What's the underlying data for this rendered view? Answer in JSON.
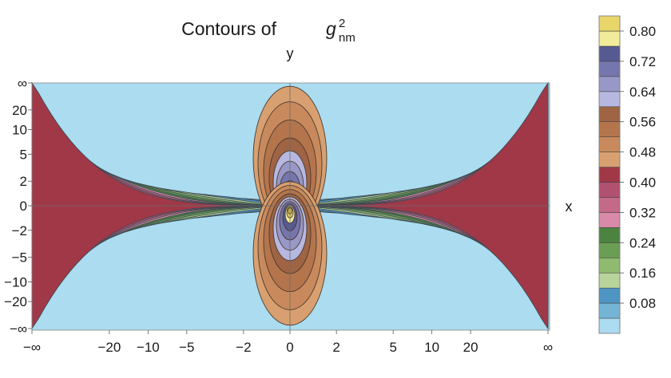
{
  "chart_data": {
    "type": "contour",
    "title": "Contours of ",
    "title_symbol": "g",
    "title_subscript": "nm",
    "title_superscript": "2",
    "xlabel": "x",
    "ylabel": "y",
    "x_ticks": [
      "−∞",
      "−20",
      "−10",
      "−5",
      "−2",
      "0",
      "2",
      "5",
      "10",
      "20",
      "∞"
    ],
    "y_ticks": [
      "∞",
      "20",
      "10",
      "5",
      "2",
      "0",
      "−2",
      "−5",
      "−10",
      "−20",
      "−∞"
    ],
    "legend_ticks": [
      "0.80",
      "0.72",
      "0.64",
      "0.56",
      "0.48",
      "0.40",
      "0.32",
      "0.24",
      "0.16",
      "0.08"
    ],
    "levels": [
      0,
      0.04,
      0.08,
      0.12,
      0.16,
      0.2,
      0.24,
      0.28,
      0.32,
      0.36,
      0.4,
      0.44,
      0.48,
      0.52,
      0.56,
      0.6,
      0.64,
      0.68,
      0.72,
      0.76,
      0.8,
      0.84
    ],
    "colors": [
      "#abdcf0",
      "#74b5d6",
      "#4e95c4",
      "#b7d49a",
      "#8fba70",
      "#6b9e55",
      "#4d8340",
      "#d98aa8",
      "#c36a88",
      "#b05170",
      "#a03848",
      "#d8a070",
      "#c88a5c",
      "#b4754c",
      "#9f6444",
      "#b6b8e0",
      "#9898c8",
      "#7676ae",
      "#555a92",
      "#f0ec9a",
      "#e8d66a",
      "#dcc848"
    ],
    "legend_placement": "right"
  }
}
